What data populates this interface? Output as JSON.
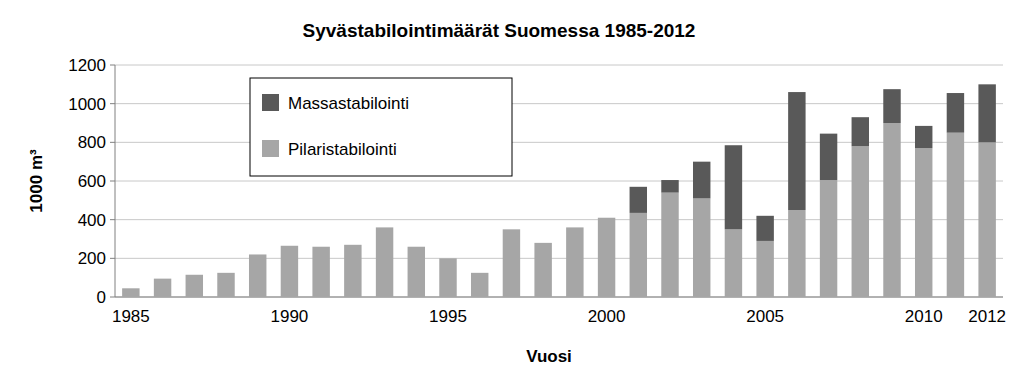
{
  "chart_data": {
    "type": "bar",
    "stacked": true,
    "title": "Syvästabilointimäärät Suomessa 1985-2012",
    "x_label": "Vuosi",
    "y_label": "1000 m³",
    "categories": [
      "1985",
      null,
      null,
      null,
      null,
      "1990",
      null,
      null,
      null,
      null,
      "1995",
      null,
      null,
      null,
      null,
      "2000",
      null,
      null,
      null,
      null,
      "2005",
      null,
      null,
      null,
      null,
      "2010",
      null,
      "2012"
    ],
    "series": [
      {
        "name": "Pilaristabilointi",
        "color": "#a6a6a6",
        "values": [
          45,
          95,
          115,
          125,
          220,
          265,
          260,
          270,
          360,
          260,
          200,
          125,
          350,
          280,
          360,
          410,
          435,
          540,
          510,
          350,
          290,
          450,
          605,
          780,
          900,
          770,
          850,
          800
        ]
      },
      {
        "name": "Massastabilointi",
        "color": "#595959",
        "values": [
          0,
          0,
          0,
          0,
          0,
          0,
          0,
          0,
          0,
          0,
          0,
          0,
          0,
          0,
          0,
          0,
          135,
          65,
          190,
          435,
          130,
          610,
          240,
          150,
          175,
          115,
          205,
          300
        ]
      }
    ],
    "ylim": [
      0,
      1200
    ],
    "yticks": [
      0,
      200,
      400,
      600,
      800,
      1000,
      1200
    ],
    "grid": true,
    "legend": "top-left"
  }
}
